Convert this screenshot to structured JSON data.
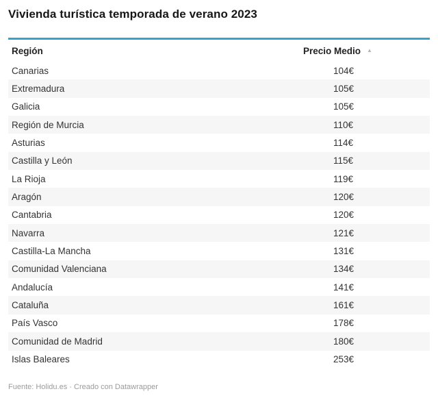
{
  "header": {
    "title": "Vivienda turística temporada de verano 2023"
  },
  "table": {
    "columns": {
      "region": "Región",
      "price": "Precio Medio",
      "sort_icon": "▲"
    },
    "rows": [
      {
        "region": "Canarias",
        "price": "104€"
      },
      {
        "region": "Extremadura",
        "price": "105€"
      },
      {
        "region": "Galicia",
        "price": "105€"
      },
      {
        "region": "Región de Murcia",
        "price": "110€"
      },
      {
        "region": "Asturias",
        "price": "114€"
      },
      {
        "region": "Castilla y León",
        "price": "115€"
      },
      {
        "region": "La Rioja",
        "price": "119€"
      },
      {
        "region": "Aragón",
        "price": "120€"
      },
      {
        "region": "Cantabria",
        "price": "120€"
      },
      {
        "region": "Navarra",
        "price": "121€"
      },
      {
        "region": "Castilla-La Mancha",
        "price": "131€"
      },
      {
        "region": "Comunidad Valenciana",
        "price": "134€"
      },
      {
        "region": "Andalucía",
        "price": "141€"
      },
      {
        "region": "Cataluña",
        "price": "161€"
      },
      {
        "region": "País Vasco",
        "price": "178€"
      },
      {
        "region": "Comunidad de Madrid",
        "price": "180€"
      },
      {
        "region": "Islas Baleares",
        "price": "253€"
      }
    ]
  },
  "footer": {
    "prefix": "Fuente: ",
    "source": "Holidu.es",
    "separator": " · ",
    "attribution": "Creado con Datawrapper"
  },
  "colors": {
    "accent": "#35a3d0",
    "zebra": "#f6f6f6",
    "title_text": "#161616",
    "header_text": "#222222",
    "body_text": "#333333",
    "footer_text": "#9b9b9b",
    "sort_arrow": "#b5b5b5"
  },
  "chart_data": {
    "type": "table",
    "title": "Vivienda turística temporada de verano 2023",
    "columns": [
      "Región",
      "Precio Medio"
    ],
    "unit": "€",
    "sort": "Precio Medio ascending",
    "rows": [
      [
        "Canarias",
        104
      ],
      [
        "Extremadura",
        105
      ],
      [
        "Galicia",
        105
      ],
      [
        "Región de Murcia",
        110
      ],
      [
        "Asturias",
        114
      ],
      [
        "Castilla y León",
        115
      ],
      [
        "La Rioja",
        119
      ],
      [
        "Aragón",
        120
      ],
      [
        "Cantabria",
        120
      ],
      [
        "Navarra",
        121
      ],
      [
        "Castilla-La Mancha",
        131
      ],
      [
        "Comunidad Valenciana",
        134
      ],
      [
        "Andalucía",
        141
      ],
      [
        "Cataluña",
        161
      ],
      [
        "País Vasco",
        178
      ],
      [
        "Comunidad de Madrid",
        180
      ],
      [
        "Islas Baleares",
        253
      ]
    ],
    "source": "Holidu.es",
    "attribution": "Creado con Datawrapper"
  }
}
